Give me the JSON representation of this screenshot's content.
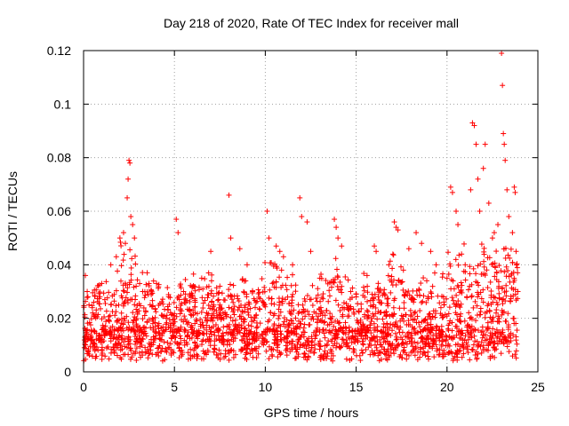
{
  "chart_data": {
    "type": "scatter",
    "title": "Day 218 of 2020, Rate Of TEC Index for receiver mall",
    "xlabel": "GPS time / hours",
    "ylabel": "ROTI / TECUs",
    "xlim": [
      0,
      25
    ],
    "ylim": [
      0,
      0.12
    ],
    "x_ticks": [
      "0",
      "5",
      "10",
      "15",
      "20",
      "25"
    ],
    "y_ticks": [
      "0",
      "0.02",
      "0.04",
      "0.06",
      "0.08",
      "0.1",
      "0.12"
    ],
    "x_tick_values": [
      0,
      5,
      10,
      15,
      20,
      25
    ],
    "y_tick_values": [
      0,
      0.02,
      0.04,
      0.06,
      0.08,
      0.1,
      0.12
    ],
    "marker": "+",
    "color": "#ff0000",
    "grid": true,
    "series": [
      {
        "name": "ROTI",
        "points": [
          [
            0.1,
            0.036
          ],
          [
            0.2,
            0.03
          ],
          [
            0.3,
            0.025
          ],
          [
            0.5,
            0.022
          ],
          [
            1.0,
            0.033
          ],
          [
            1.5,
            0.04
          ],
          [
            1.8,
            0.043
          ],
          [
            2.0,
            0.05
          ],
          [
            2.2,
            0.052
          ],
          [
            2.3,
            0.048
          ],
          [
            2.4,
            0.065
          ],
          [
            2.45,
            0.072
          ],
          [
            2.5,
            0.079
          ],
          [
            2.55,
            0.078
          ],
          [
            2.6,
            0.058
          ],
          [
            2.7,
            0.055
          ],
          [
            2.8,
            0.05
          ],
          [
            3.5,
            0.037
          ],
          [
            3.6,
            0.033
          ],
          [
            5.1,
            0.057
          ],
          [
            5.2,
            0.052
          ],
          [
            5.5,
            0.03
          ],
          [
            6.5,
            0.035
          ],
          [
            7.0,
            0.045
          ],
          [
            7.5,
            0.032
          ],
          [
            8.0,
            0.066
          ],
          [
            8.1,
            0.05
          ],
          [
            8.6,
            0.046
          ],
          [
            9.0,
            0.04
          ],
          [
            9.3,
            0.03
          ],
          [
            10.1,
            0.06
          ],
          [
            10.2,
            0.05
          ],
          [
            10.6,
            0.047
          ],
          [
            10.8,
            0.045
          ],
          [
            11.0,
            0.043
          ],
          [
            11.5,
            0.04
          ],
          [
            11.9,
            0.065
          ],
          [
            12.0,
            0.058
          ],
          [
            12.3,
            0.056
          ],
          [
            12.5,
            0.045
          ],
          [
            13.0,
            0.035
          ],
          [
            13.8,
            0.057
          ],
          [
            13.9,
            0.054
          ],
          [
            14.0,
            0.05
          ],
          [
            14.2,
            0.047
          ],
          [
            14.7,
            0.03
          ],
          [
            15.0,
            0.028
          ],
          [
            15.6,
            0.036
          ],
          [
            16.0,
            0.047
          ],
          [
            16.1,
            0.045
          ],
          [
            16.8,
            0.04
          ],
          [
            17.1,
            0.056
          ],
          [
            17.2,
            0.054
          ],
          [
            17.3,
            0.053
          ],
          [
            17.6,
            0.038
          ],
          [
            17.9,
            0.046
          ],
          [
            18.3,
            0.052
          ],
          [
            18.6,
            0.048
          ],
          [
            19.1,
            0.045
          ],
          [
            19.4,
            0.04
          ],
          [
            20.0,
            0.035
          ],
          [
            20.2,
            0.069
          ],
          [
            20.3,
            0.067
          ],
          [
            20.5,
            0.06
          ],
          [
            20.6,
            0.055
          ],
          [
            20.8,
            0.044
          ],
          [
            21.0,
            0.04
          ],
          [
            21.3,
            0.068
          ],
          [
            21.4,
            0.093
          ],
          [
            21.5,
            0.092
          ],
          [
            21.6,
            0.085
          ],
          [
            21.7,
            0.072
          ],
          [
            21.8,
            0.06
          ],
          [
            22.0,
            0.076
          ],
          [
            22.1,
            0.085
          ],
          [
            22.3,
            0.063
          ],
          [
            22.5,
            0.05
          ],
          [
            22.6,
            0.052
          ],
          [
            22.8,
            0.055
          ],
          [
            23.0,
            0.119
          ],
          [
            23.05,
            0.107
          ],
          [
            23.1,
            0.089
          ],
          [
            23.15,
            0.085
          ],
          [
            23.2,
            0.079
          ],
          [
            23.3,
            0.068
          ],
          [
            23.4,
            0.058
          ],
          [
            23.6,
            0.052
          ],
          [
            23.7,
            0.069
          ],
          [
            23.75,
            0.067
          ],
          [
            23.8,
            0.045
          ],
          [
            23.9,
            0.03
          ]
        ]
      }
    ]
  }
}
